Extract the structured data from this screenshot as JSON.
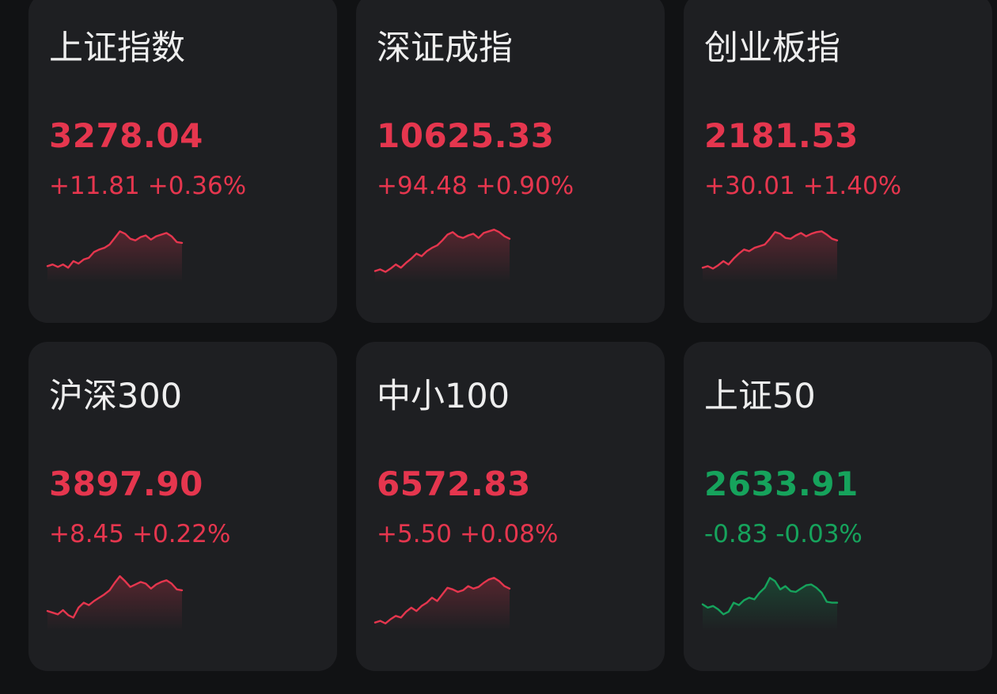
{
  "colors": {
    "up": "#e5364e",
    "down": "#16a35c"
  },
  "indices": [
    {
      "name": "上证指数",
      "price": "3278.04",
      "change": "+11.81",
      "pct": "+0.36%",
      "trend": "up",
      "chart_data": {
        "type": "line",
        "values": [
          16,
          18,
          15,
          18,
          14,
          22,
          19,
          24,
          26,
          33,
          36,
          38,
          42,
          50,
          58,
          55,
          49,
          47,
          51,
          53,
          48,
          52,
          54,
          56,
          52,
          45,
          44
        ],
        "ylim": [
          0,
          64
        ]
      }
    },
    {
      "name": "深证成指",
      "price": "10625.33",
      "change": "+94.48",
      "pct": "+0.90%",
      "trend": "up",
      "chart_data": {
        "type": "line",
        "values": [
          10,
          12,
          9,
          13,
          18,
          14,
          20,
          25,
          31,
          28,
          34,
          38,
          41,
          47,
          54,
          57,
          52,
          50,
          53,
          55,
          50,
          56,
          58,
          60,
          57,
          52,
          49
        ],
        "ylim": [
          0,
          64
        ]
      }
    },
    {
      "name": "创业板指",
      "price": "2181.53",
      "change": "+30.01",
      "pct": "+1.40%",
      "trend": "up",
      "chart_data": {
        "type": "line",
        "values": [
          14,
          16,
          13,
          17,
          22,
          18,
          25,
          31,
          36,
          34,
          38,
          40,
          42,
          49,
          57,
          55,
          50,
          49,
          53,
          56,
          52,
          55,
          57,
          58,
          54,
          49,
          47
        ],
        "ylim": [
          0,
          64
        ]
      }
    },
    {
      "name": "沪深300",
      "price": "3897.90",
      "change": "+8.45",
      "pct": "+0.22%",
      "trend": "up",
      "chart_data": {
        "type": "line",
        "values": [
          20,
          18,
          16,
          21,
          15,
          12,
          24,
          30,
          27,
          32,
          36,
          40,
          45,
          54,
          62,
          56,
          49,
          52,
          55,
          53,
          47,
          52,
          55,
          57,
          53,
          46,
          45
        ],
        "ylim": [
          0,
          64
        ]
      }
    },
    {
      "name": "中小100",
      "price": "6572.83",
      "change": "+5.50",
      "pct": "+0.08%",
      "trend": "up",
      "chart_data": {
        "type": "line",
        "values": [
          6,
          8,
          5,
          10,
          14,
          12,
          19,
          24,
          20,
          26,
          30,
          36,
          32,
          40,
          48,
          46,
          43,
          45,
          50,
          47,
          49,
          54,
          58,
          60,
          56,
          50,
          47
        ],
        "ylim": [
          0,
          64
        ]
      }
    },
    {
      "name": "上证50",
      "price": "2633.91",
      "change": "-0.83",
      "pct": "-0.03%",
      "trend": "down",
      "chart_data": {
        "type": "line",
        "values": [
          28,
          24,
          26,
          22,
          16,
          19,
          30,
          27,
          33,
          36,
          34,
          42,
          48,
          60,
          56,
          46,
          50,
          44,
          43,
          47,
          51,
          52,
          48,
          42,
          31,
          30,
          30
        ],
        "ylim": [
          0,
          64
        ]
      }
    }
  ]
}
